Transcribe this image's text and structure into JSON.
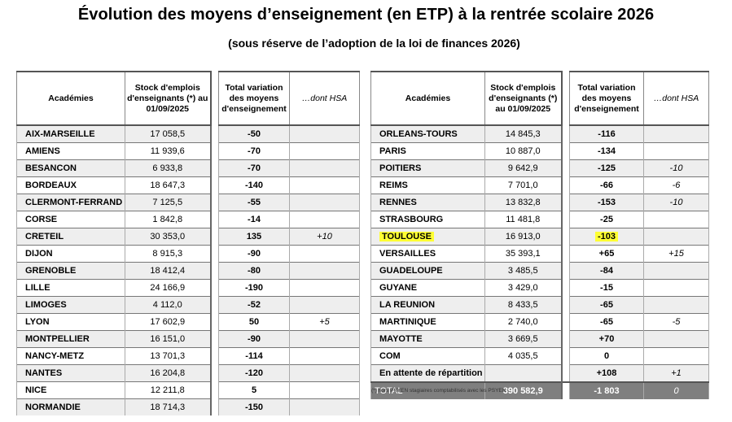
{
  "title": "Évolution des moyens d’enseignement (en ETP) à la rentrée scolaire 2026",
  "subtitle": "(sous réserve de l’adoption de la loi de finances 2026)",
  "headers": {
    "academies": "Académies",
    "stock": "Stock d'emplois d'enseignants (*) au 01/09/2025",
    "total_variation": "Total variation des moyens d'enseignement",
    "dont_hsa": "…dont HSA"
  },
  "left_rows": [
    {
      "academie": "AIX-MARSEILLE",
      "stock": "17 058,5",
      "variation": "-50",
      "hsa": ""
    },
    {
      "academie": "AMIENS",
      "stock": "11 939,6",
      "variation": "-70",
      "hsa": ""
    },
    {
      "academie": "BESANCON",
      "stock": "6 933,8",
      "variation": "-70",
      "hsa": ""
    },
    {
      "academie": "BORDEAUX",
      "stock": "18 647,3",
      "variation": "-140",
      "hsa": ""
    },
    {
      "academie": "CLERMONT-FERRAND",
      "stock": "7 125,5",
      "variation": "-55",
      "hsa": ""
    },
    {
      "academie": "CORSE",
      "stock": "1 842,8",
      "variation": "-14",
      "hsa": ""
    },
    {
      "academie": "CRETEIL",
      "stock": "30 353,0",
      "variation": "135",
      "hsa": "+10"
    },
    {
      "academie": "DIJON",
      "stock": "8 915,3",
      "variation": "-90",
      "hsa": ""
    },
    {
      "academie": "GRENOBLE",
      "stock": "18 412,4",
      "variation": "-80",
      "hsa": ""
    },
    {
      "academie": "LILLE",
      "stock": "24 166,9",
      "variation": "-190",
      "hsa": ""
    },
    {
      "academie": "LIMOGES",
      "stock": "4 112,0",
      "variation": "-52",
      "hsa": ""
    },
    {
      "academie": "LYON",
      "stock": "17 602,9",
      "variation": "50",
      "hsa": "+5"
    },
    {
      "academie": "MONTPELLIER",
      "stock": "16 151,0",
      "variation": "-90",
      "hsa": ""
    },
    {
      "academie": "NANCY-METZ",
      "stock": "13 701,3",
      "variation": "-114",
      "hsa": ""
    },
    {
      "academie": "NANTES",
      "stock": "16 204,8",
      "variation": "-120",
      "hsa": ""
    },
    {
      "academie": "NICE",
      "stock": "12 211,8",
      "variation": "5",
      "hsa": ""
    },
    {
      "academie": "NORMANDIE",
      "stock": "18 714,3",
      "variation": "-150",
      "hsa": ""
    }
  ],
  "right_rows": [
    {
      "academie": "ORLEANS-TOURS",
      "stock": "14 845,3",
      "variation": "-116",
      "hsa": ""
    },
    {
      "academie": "PARIS",
      "stock": "10 887,0",
      "variation": "-134",
      "hsa": ""
    },
    {
      "academie": "POITIERS",
      "stock": "9 642,9",
      "variation": "-125",
      "hsa": "-10"
    },
    {
      "academie": "REIMS",
      "stock": "7 701,0",
      "variation": "-66",
      "hsa": "-6"
    },
    {
      "academie": "RENNES",
      "stock": "13 832,8",
      "variation": "-153",
      "hsa": "-10"
    },
    {
      "academie": "STRASBOURG",
      "stock": "11 481,8",
      "variation": "-25",
      "hsa": ""
    },
    {
      "academie": "TOULOUSE",
      "stock": "16 913,0",
      "variation": "-103",
      "hsa": "",
      "highlight": true
    },
    {
      "academie": "VERSAILLES",
      "stock": "35 393,1",
      "variation": "+65",
      "hsa": "+15"
    },
    {
      "academie": "GUADELOUPE",
      "stock": "3 485,5",
      "variation": "-84",
      "hsa": ""
    },
    {
      "academie": "GUYANE",
      "stock": "3 429,0",
      "variation": "-15",
      "hsa": ""
    },
    {
      "academie": "LA REUNION",
      "stock": "8 433,5",
      "variation": "-65",
      "hsa": ""
    },
    {
      "academie": "MARTINIQUE",
      "stock": "2 740,0",
      "variation": "-65",
      "hsa": "-5"
    },
    {
      "academie": "MAYOTTE",
      "stock": "3 669,5",
      "variation": "+70",
      "hsa": ""
    },
    {
      "academie": "COM",
      "stock": "4 035,5",
      "variation": "0",
      "hsa": ""
    },
    {
      "academie": "En attente de répartition",
      "stock": "",
      "variation": "+108",
      "hsa": "+1"
    }
  ],
  "total": {
    "label": "TOTAL",
    "stock": "390 582,9",
    "variation": "-1 803",
    "hsa": "0"
  },
  "footnote": "(*) hors PSYEN stagiaires comptabilisés avec les PSYEN",
  "colors": {
    "highlight": "#ffff33",
    "total_bg": "#7f7f7f",
    "stripe": "#eeeeee"
  }
}
